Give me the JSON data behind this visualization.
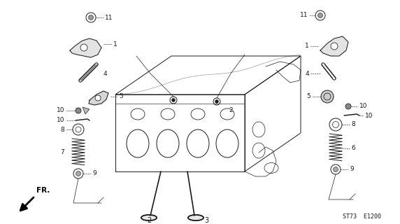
{
  "bg_color": "#ffffff",
  "line_color": "#1a1a1a",
  "st_code": "ST73  E1200",
  "fig_w": 5.72,
  "fig_h": 3.2,
  "dpi": 100
}
